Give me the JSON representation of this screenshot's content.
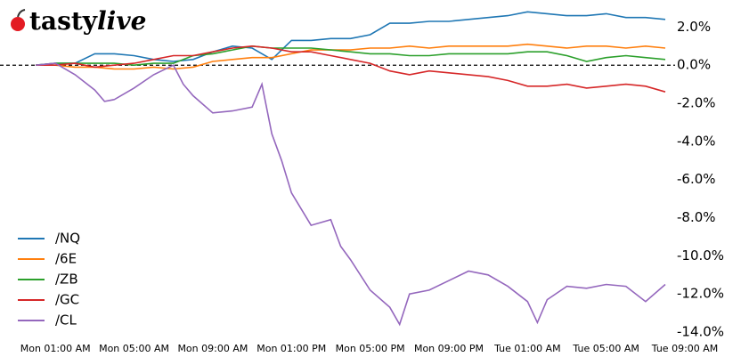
{
  "logo": [
    "tasty",
    "live"
  ],
  "chart_data": {
    "type": "line",
    "xlim": [
      -1,
      32.5
    ],
    "ylim": [
      -14,
      3
    ],
    "xticks": [
      {
        "value": 1,
        "label": "Mon 01:00 AM"
      },
      {
        "value": 5,
        "label": "Mon 05:00 AM"
      },
      {
        "value": 9,
        "label": "Mon 09:00 AM"
      },
      {
        "value": 13,
        "label": "Mon 01:00 PM"
      },
      {
        "value": 17,
        "label": "Mon 05:00 PM"
      },
      {
        "value": 21,
        "label": "Mon 09:00 PM"
      },
      {
        "value": 25,
        "label": "Tue 01:00 AM"
      },
      {
        "value": 29,
        "label": "Tue 05:00 AM"
      },
      {
        "value": 33,
        "label": "Tue 09:00 AM"
      }
    ],
    "yticks": [
      {
        "value": 2,
        "label": "2.0%"
      },
      {
        "value": 0,
        "label": "0.0%"
      },
      {
        "value": -2,
        "label": "-2.0%"
      },
      {
        "value": -4,
        "label": "-4.0%"
      },
      {
        "value": -6,
        "label": "-6.0%"
      },
      {
        "value": -8,
        "label": "-8.0%"
      },
      {
        "value": -10,
        "label": "-10.0%"
      },
      {
        "value": -12,
        "label": "-12.0%"
      },
      {
        "value": -14,
        "label": "-14.0%"
      }
    ],
    "legend": "lower left",
    "series": [
      {
        "name": "/NQ",
        "color": "#1f77b4",
        "x": [
          0,
          1,
          2,
          3,
          4,
          5,
          6,
          7,
          8,
          9,
          10,
          11,
          12,
          13,
          14,
          15,
          16,
          17,
          18,
          19,
          20,
          21,
          22,
          23,
          24,
          25,
          26,
          27,
          28,
          29,
          30,
          31,
          32
        ],
        "values": [
          0,
          0.1,
          0.1,
          0.6,
          0.6,
          0.5,
          0.3,
          0.2,
          0.3,
          0.7,
          1.0,
          0.9,
          0.3,
          1.3,
          1.3,
          1.4,
          1.4,
          1.6,
          2.2,
          2.2,
          2.3,
          2.3,
          2.4,
          2.5,
          2.6,
          2.8,
          2.7,
          2.6,
          2.6,
          2.7,
          2.5,
          2.5,
          2.4
        ]
      },
      {
        "name": "/6E",
        "color": "#ff7f0e",
        "x": [
          0,
          1,
          2,
          3,
          4,
          5,
          6,
          7,
          8,
          9,
          10,
          11,
          12,
          13,
          14,
          15,
          16,
          17,
          18,
          19,
          20,
          21,
          22,
          23,
          24,
          25,
          26,
          27,
          28,
          29,
          30,
          31,
          32
        ],
        "values": [
          0,
          0,
          -0.1,
          -0.1,
          -0.2,
          -0.2,
          -0.1,
          -0.2,
          -0.1,
          0.2,
          0.3,
          0.4,
          0.4,
          0.6,
          0.8,
          0.8,
          0.8,
          0.9,
          0.9,
          1.0,
          0.9,
          1.0,
          1.0,
          1.0,
          1.0,
          1.1,
          1.0,
          0.9,
          1.0,
          1.0,
          0.9,
          1.0,
          0.9
        ]
      },
      {
        "name": "/ZB",
        "color": "#2ca02c",
        "x": [
          0,
          1,
          2,
          3,
          4,
          5,
          6,
          7,
          8,
          9,
          10,
          11,
          12,
          13,
          14,
          15,
          16,
          17,
          18,
          19,
          20,
          21,
          22,
          23,
          24,
          25,
          26,
          27,
          28,
          29,
          30,
          31,
          32
        ],
        "values": [
          0,
          0.1,
          0.1,
          0.1,
          0.1,
          0,
          0.1,
          0.1,
          0.5,
          0.6,
          0.8,
          1.0,
          0.9,
          0.9,
          0.9,
          0.8,
          0.7,
          0.6,
          0.6,
          0.5,
          0.5,
          0.6,
          0.6,
          0.6,
          0.6,
          0.7,
          0.7,
          0.5,
          0.2,
          0.4,
          0.5,
          0.4,
          0.3
        ]
      },
      {
        "name": "/GC",
        "color": "#d62728",
        "x": [
          0,
          1,
          2,
          3,
          4,
          5,
          6,
          7,
          8,
          9,
          10,
          11,
          12,
          13,
          14,
          15,
          16,
          17,
          18,
          19,
          20,
          21,
          22,
          23,
          24,
          25,
          26,
          27,
          28,
          29,
          30,
          31,
          32
        ],
        "values": [
          0,
          0,
          0.1,
          -0.1,
          0,
          0.1,
          0.3,
          0.5,
          0.5,
          0.7,
          0.9,
          1.0,
          0.9,
          0.7,
          0.7,
          0.5,
          0.3,
          0.1,
          -0.3,
          -0.5,
          -0.3,
          -0.4,
          -0.5,
          -0.6,
          -0.8,
          -1.1,
          -1.1,
          -1.0,
          -1.2,
          -1.1,
          -1.0,
          -1.1,
          -1.4
        ]
      },
      {
        "name": "/CL",
        "color": "#9467bd",
        "x": [
          0,
          1,
          2,
          3,
          3.5,
          4,
          5,
          6,
          7,
          7.5,
          8,
          9,
          10,
          11,
          11.5,
          12,
          12.5,
          13,
          14,
          15,
          15.5,
          16,
          17,
          18,
          18.5,
          19,
          20,
          21,
          22,
          23,
          24,
          25,
          25.5,
          26,
          27,
          28,
          29,
          30,
          31,
          32
        ],
        "values": [
          0,
          0.1,
          -0.5,
          -1.3,
          -1.9,
          -1.8,
          -1.2,
          -0.5,
          0.0,
          -1.0,
          -1.6,
          -2.5,
          -2.4,
          -2.2,
          -1.0,
          -3.6,
          -5.0,
          -6.7,
          -8.4,
          -8.1,
          -9.5,
          -10.2,
          -11.8,
          -12.7,
          -13.6,
          -12.0,
          -11.8,
          -11.3,
          -10.8,
          -11.0,
          -11.6,
          -12.4,
          -13.5,
          -12.3,
          -11.6,
          -11.7,
          -11.5,
          -11.6,
          -12.4,
          -11.5
        ]
      }
    ]
  }
}
